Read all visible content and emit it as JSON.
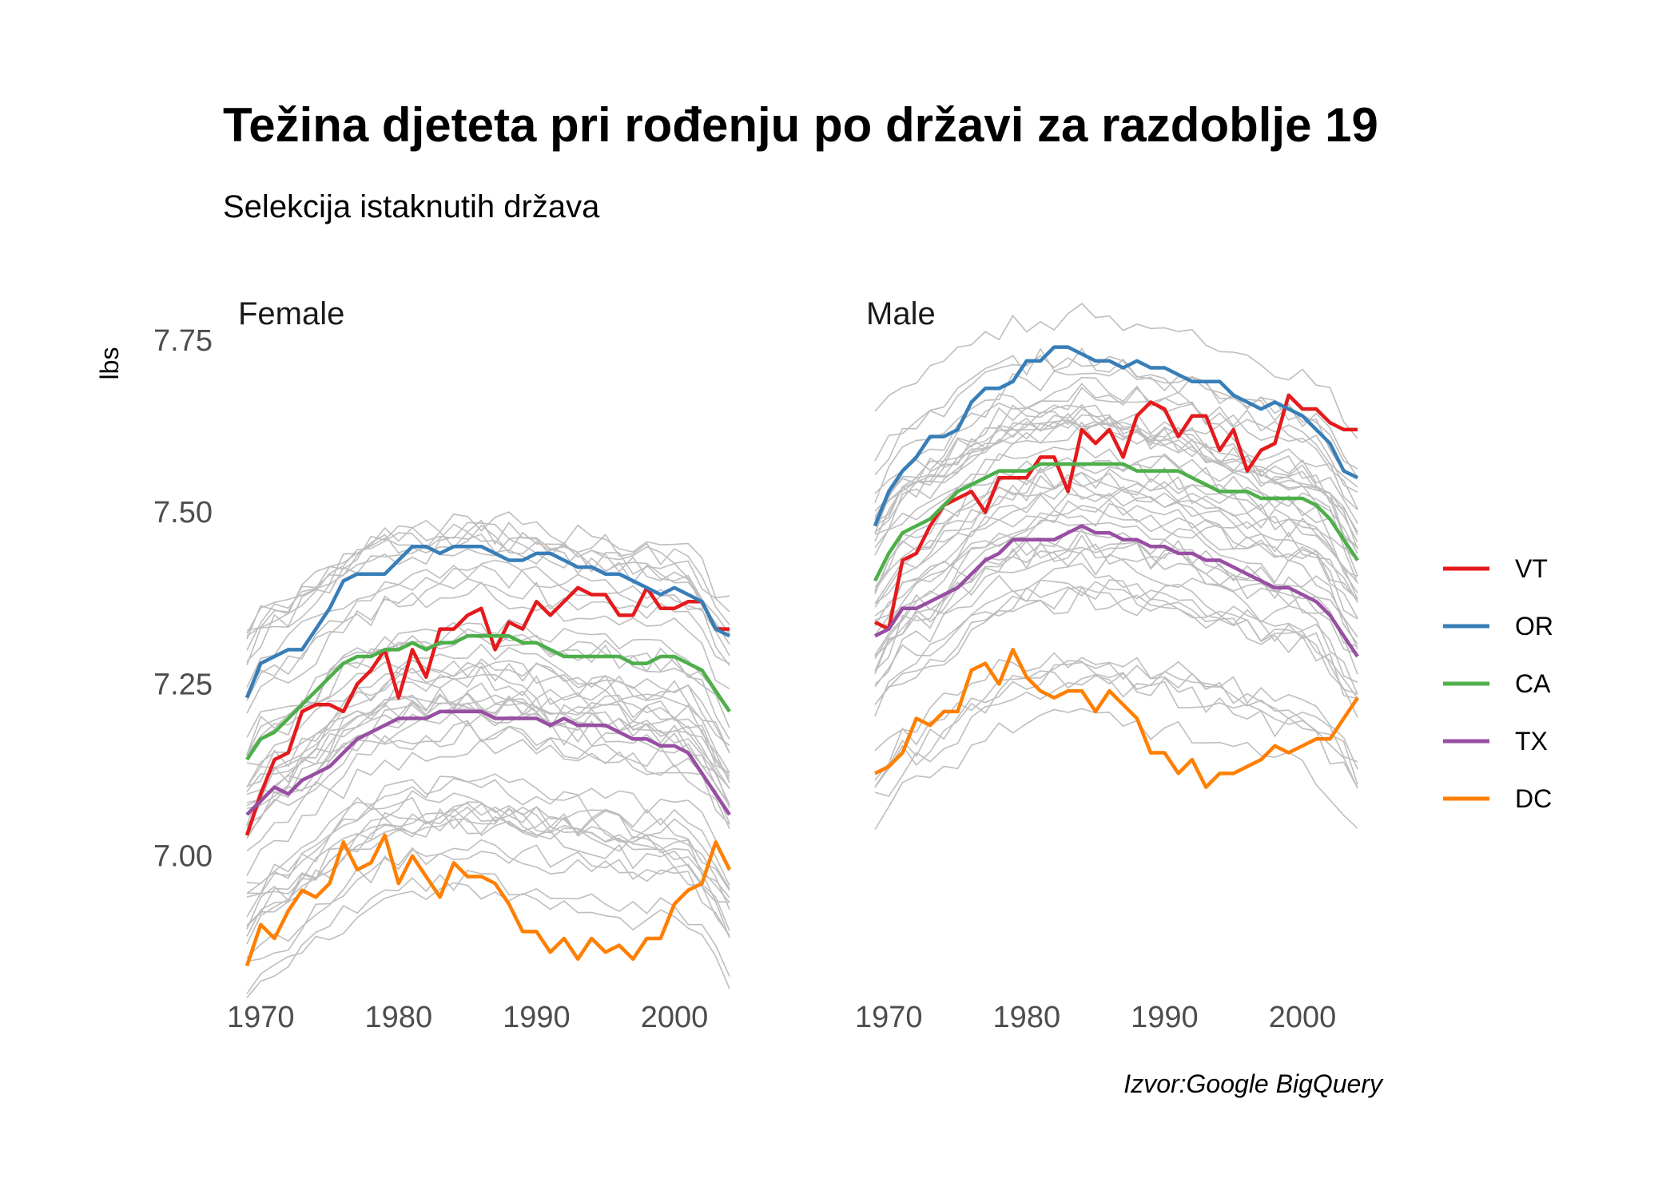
{
  "chart_data": {
    "type": "line",
    "title": "Težina djeteta pri rođenju po državi za razdoblje 19",
    "subtitle": "Selekcija istaknutih država",
    "ylabel": "lbs",
    "caption": "Izvor:Google BigQuery",
    "x_range": [
      1969,
      2004
    ],
    "ylim": [
      6.83,
      7.8
    ],
    "y_ticks": [
      7.0,
      7.25,
      7.5,
      7.75
    ],
    "y_tick_labels": [
      "7.00",
      "7.25",
      "7.50",
      "7.75"
    ],
    "x_ticks": [
      1970,
      1980,
      1990,
      2000
    ],
    "x_tick_labels": [
      "1970",
      "1980",
      "1990",
      "2000"
    ],
    "legend_position": "right",
    "background_series_color": "#bebebe",
    "highlight_series": [
      {
        "name": "VT",
        "color": "#e41a1c"
      },
      {
        "name": "OR",
        "color": "#377eb8"
      },
      {
        "name": "CA",
        "color": "#4daf4a"
      },
      {
        "name": "TX",
        "color": "#984ea3"
      },
      {
        "name": "DC",
        "color": "#ff7f00"
      }
    ],
    "panels": [
      {
        "label": "Female",
        "series": [
          {
            "name": "VT",
            "x": [
              1969,
              1970,
              1971,
              1972,
              1973,
              1974,
              1975,
              1976,
              1977,
              1978,
              1979,
              1980,
              1981,
              1982,
              1983,
              1984,
              1985,
              1986,
              1987,
              1988,
              1989,
              1990,
              1991,
              1992,
              1993,
              1994,
              1995,
              1996,
              1997,
              1998,
              1999,
              2000,
              2001,
              2002,
              2003,
              2004
            ],
            "y": [
              7.03,
              7.09,
              7.14,
              7.15,
              7.21,
              7.22,
              7.22,
              7.21,
              7.25,
              7.27,
              7.3,
              7.23,
              7.3,
              7.26,
              7.33,
              7.33,
              7.35,
              7.36,
              7.3,
              7.34,
              7.33,
              7.37,
              7.35,
              7.37,
              7.39,
              7.38,
              7.38,
              7.35,
              7.35,
              7.39,
              7.36,
              7.36,
              7.37,
              7.37,
              7.33,
              7.33
            ]
          },
          {
            "name": "OR",
            "x": [
              1969,
              1970,
              1971,
              1972,
              1973,
              1974,
              1975,
              1976,
              1977,
              1978,
              1979,
              1980,
              1981,
              1982,
              1983,
              1984,
              1985,
              1986,
              1987,
              1988,
              1989,
              1990,
              1991,
              1992,
              1993,
              1994,
              1995,
              1996,
              1997,
              1998,
              1999,
              2000,
              2001,
              2002,
              2003,
              2004
            ],
            "y": [
              7.23,
              7.28,
              7.29,
              7.3,
              7.3,
              7.33,
              7.36,
              7.4,
              7.41,
              7.41,
              7.41,
              7.43,
              7.45,
              7.45,
              7.44,
              7.45,
              7.45,
              7.45,
              7.44,
              7.43,
              7.43,
              7.44,
              7.44,
              7.43,
              7.42,
              7.42,
              7.41,
              7.41,
              7.4,
              7.39,
              7.38,
              7.39,
              7.38,
              7.37,
              7.33,
              7.32
            ]
          },
          {
            "name": "CA",
            "x": [
              1969,
              1970,
              1971,
              1972,
              1973,
              1974,
              1975,
              1976,
              1977,
              1978,
              1979,
              1980,
              1981,
              1982,
              1983,
              1984,
              1985,
              1986,
              1987,
              1988,
              1989,
              1990,
              1991,
              1992,
              1993,
              1994,
              1995,
              1996,
              1997,
              1998,
              1999,
              2000,
              2001,
              2002,
              2003,
              2004
            ],
            "y": [
              7.14,
              7.17,
              7.18,
              7.2,
              7.22,
              7.24,
              7.26,
              7.28,
              7.29,
              7.29,
              7.3,
              7.3,
              7.31,
              7.3,
              7.31,
              7.31,
              7.32,
              7.32,
              7.32,
              7.32,
              7.31,
              7.31,
              7.3,
              7.29,
              7.29,
              7.29,
              7.29,
              7.29,
              7.28,
              7.28,
              7.29,
              7.29,
              7.28,
              7.27,
              7.24,
              7.21
            ]
          },
          {
            "name": "TX",
            "x": [
              1969,
              1970,
              1971,
              1972,
              1973,
              1974,
              1975,
              1976,
              1977,
              1978,
              1979,
              1980,
              1981,
              1982,
              1983,
              1984,
              1985,
              1986,
              1987,
              1988,
              1989,
              1990,
              1991,
              1992,
              1993,
              1994,
              1995,
              1996,
              1997,
              1998,
              1999,
              2000,
              2001,
              2002,
              2003,
              2004
            ],
            "y": [
              7.06,
              7.08,
              7.1,
              7.09,
              7.11,
              7.12,
              7.13,
              7.15,
              7.17,
              7.18,
              7.19,
              7.2,
              7.2,
              7.2,
              7.21,
              7.21,
              7.21,
              7.21,
              7.2,
              7.2,
              7.2,
              7.2,
              7.19,
              7.2,
              7.19,
              7.19,
              7.19,
              7.18,
              7.17,
              7.17,
              7.16,
              7.16,
              7.15,
              7.12,
              7.09,
              7.06
            ]
          },
          {
            "name": "DC",
            "x": [
              1969,
              1970,
              1971,
              1972,
              1973,
              1974,
              1975,
              1976,
              1977,
              1978,
              1979,
              1980,
              1981,
              1982,
              1983,
              1984,
              1985,
              1986,
              1987,
              1988,
              1989,
              1990,
              1991,
              1992,
              1993,
              1994,
              1995,
              1996,
              1997,
              1998,
              1999,
              2000,
              2001,
              2002,
              2003,
              2004
            ],
            "y": [
              6.84,
              6.9,
              6.88,
              6.92,
              6.95,
              6.94,
              6.96,
              7.02,
              6.98,
              6.99,
              7.03,
              6.96,
              7.0,
              6.97,
              6.94,
              6.99,
              6.97,
              6.97,
              6.96,
              6.93,
              6.89,
              6.89,
              6.86,
              6.88,
              6.85,
              6.88,
              6.86,
              6.87,
              6.85,
              6.88,
              6.88,
              6.93,
              6.95,
              6.96,
              7.02,
              6.98
            ]
          }
        ]
      },
      {
        "label": "Male",
        "series": [
          {
            "name": "VT",
            "x": [
              1969,
              1970,
              1971,
              1972,
              1973,
              1974,
              1975,
              1976,
              1977,
              1978,
              1979,
              1980,
              1981,
              1982,
              1983,
              1984,
              1985,
              1986,
              1987,
              1988,
              1989,
              1990,
              1991,
              1992,
              1993,
              1994,
              1995,
              1996,
              1997,
              1998,
              1999,
              2000,
              2001,
              2002,
              2003,
              2004
            ],
            "y": [
              7.34,
              7.33,
              7.43,
              7.44,
              7.48,
              7.51,
              7.52,
              7.53,
              7.5,
              7.55,
              7.55,
              7.55,
              7.58,
              7.58,
              7.53,
              7.62,
              7.6,
              7.62,
              7.58,
              7.64,
              7.66,
              7.65,
              7.61,
              7.64,
              7.64,
              7.59,
              7.62,
              7.56,
              7.59,
              7.6,
              7.67,
              7.65,
              7.65,
              7.63,
              7.62,
              7.62
            ]
          },
          {
            "name": "OR",
            "x": [
              1969,
              1970,
              1971,
              1972,
              1973,
              1974,
              1975,
              1976,
              1977,
              1978,
              1979,
              1980,
              1981,
              1982,
              1983,
              1984,
              1985,
              1986,
              1987,
              1988,
              1989,
              1990,
              1991,
              1992,
              1993,
              1994,
              1995,
              1996,
              1997,
              1998,
              1999,
              2000,
              2001,
              2002,
              2003,
              2004
            ],
            "y": [
              7.48,
              7.53,
              7.56,
              7.58,
              7.61,
              7.61,
              7.62,
              7.66,
              7.68,
              7.68,
              7.69,
              7.72,
              7.72,
              7.74,
              7.74,
              7.73,
              7.72,
              7.72,
              7.71,
              7.72,
              7.71,
              7.71,
              7.7,
              7.69,
              7.69,
              7.69,
              7.67,
              7.66,
              7.65,
              7.66,
              7.65,
              7.64,
              7.62,
              7.6,
              7.56,
              7.55
            ]
          },
          {
            "name": "CA",
            "x": [
              1969,
              1970,
              1971,
              1972,
              1973,
              1974,
              1975,
              1976,
              1977,
              1978,
              1979,
              1980,
              1981,
              1982,
              1983,
              1984,
              1985,
              1986,
              1987,
              1988,
              1989,
              1990,
              1991,
              1992,
              1993,
              1994,
              1995,
              1996,
              1997,
              1998,
              1999,
              2000,
              2001,
              2002,
              2003,
              2004
            ],
            "y": [
              7.4,
              7.44,
              7.47,
              7.48,
              7.49,
              7.51,
              7.53,
              7.54,
              7.55,
              7.56,
              7.56,
              7.56,
              7.57,
              7.57,
              7.57,
              7.57,
              7.57,
              7.57,
              7.57,
              7.56,
              7.56,
              7.56,
              7.56,
              7.55,
              7.54,
              7.53,
              7.53,
              7.53,
              7.52,
              7.52,
              7.52,
              7.52,
              7.51,
              7.49,
              7.46,
              7.43
            ]
          },
          {
            "name": "TX",
            "x": [
              1969,
              1970,
              1971,
              1972,
              1973,
              1974,
              1975,
              1976,
              1977,
              1978,
              1979,
              1980,
              1981,
              1982,
              1983,
              1984,
              1985,
              1986,
              1987,
              1988,
              1989,
              1990,
              1991,
              1992,
              1993,
              1994,
              1995,
              1996,
              1997,
              1998,
              1999,
              2000,
              2001,
              2002,
              2003,
              2004
            ],
            "y": [
              7.32,
              7.33,
              7.36,
              7.36,
              7.37,
              7.38,
              7.39,
              7.41,
              7.43,
              7.44,
              7.46,
              7.46,
              7.46,
              7.46,
              7.47,
              7.48,
              7.47,
              7.47,
              7.46,
              7.46,
              7.45,
              7.45,
              7.44,
              7.44,
              7.43,
              7.43,
              7.42,
              7.41,
              7.4,
              7.39,
              7.39,
              7.38,
              7.37,
              7.35,
              7.32,
              7.29
            ]
          },
          {
            "name": "DC",
            "x": [
              1969,
              1970,
              1971,
              1972,
              1973,
              1974,
              1975,
              1976,
              1977,
              1978,
              1979,
              1980,
              1981,
              1982,
              1983,
              1984,
              1985,
              1986,
              1987,
              1988,
              1989,
              1990,
              1991,
              1992,
              1993,
              1994,
              1995,
              1996,
              1997,
              1998,
              1999,
              2000,
              2001,
              2002,
              2003,
              2004
            ],
            "y": [
              7.12,
              7.13,
              7.15,
              7.2,
              7.19,
              7.21,
              7.21,
              7.27,
              7.28,
              7.25,
              7.3,
              7.26,
              7.24,
              7.23,
              7.24,
              7.24,
              7.21,
              7.24,
              7.22,
              7.2,
              7.15,
              7.15,
              7.12,
              7.14,
              7.1,
              7.12,
              7.12,
              7.13,
              7.14,
              7.16,
              7.15,
              7.16,
              7.17,
              7.17,
              7.2,
              7.23
            ]
          }
        ]
      }
    ]
  }
}
